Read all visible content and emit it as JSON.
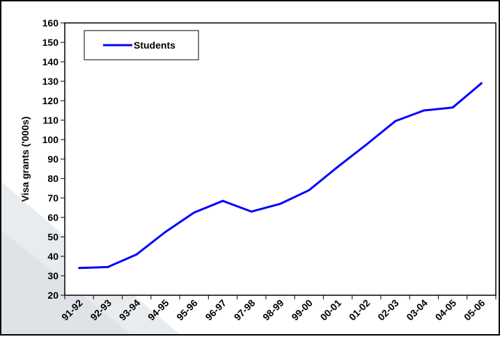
{
  "chart_data": {
    "type": "line",
    "title": "",
    "xlabel": "",
    "ylabel": "Visa grants ('000s)",
    "categories": [
      "91-92",
      "92-93",
      "93-94",
      "94-95",
      "95-96",
      "96-97",
      "97-98",
      "98-99",
      "99-00",
      "00-01",
      "01-02",
      "02-03",
      "03-04",
      "04-05",
      "05-06"
    ],
    "series": [
      {
        "name": "Students",
        "color": "#0000ff",
        "values": [
          34,
          34.5,
          41,
          52.5,
          62.5,
          68.5,
          63,
          67,
          74,
          86,
          97.5,
          109.5,
          115,
          116.5,
          129
        ]
      }
    ],
    "ylim": [
      20,
      160
    ],
    "yticks": [
      20,
      30,
      40,
      50,
      60,
      70,
      80,
      90,
      100,
      110,
      120,
      130,
      140,
      150,
      160
    ],
    "grid": false,
    "legend_position": "top-left"
  }
}
